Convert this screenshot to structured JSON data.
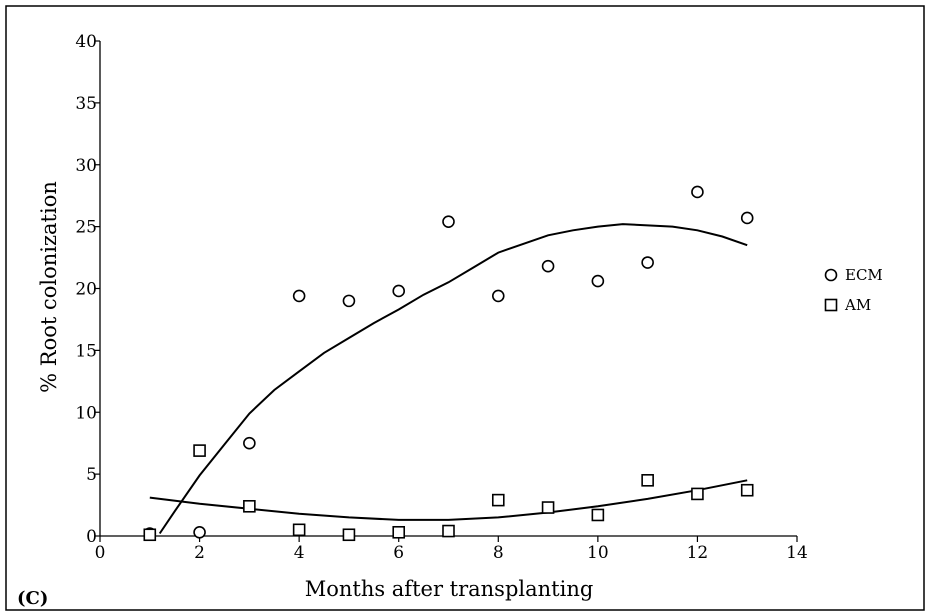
{
  "chart_data": {
    "type": "scatter",
    "panel_label": "(C)",
    "xlabel": "Months after transplanting",
    "ylabel": "% Root colonization",
    "xlim": [
      0,
      14
    ],
    "ylim": [
      0,
      40
    ],
    "xticks": [
      0,
      2,
      4,
      6,
      8,
      10,
      12,
      14
    ],
    "yticks": [
      0,
      5,
      10,
      15,
      20,
      25,
      30,
      35,
      40
    ],
    "grid": false,
    "legend_position": "right",
    "series": [
      {
        "name": "ECM",
        "marker": "circle",
        "x": [
          1,
          2,
          3,
          4,
          5,
          6,
          7,
          8,
          9,
          10,
          11,
          12,
          13
        ],
        "y": [
          0.2,
          0.3,
          7.5,
          19.4,
          19.0,
          19.8,
          25.4,
          19.4,
          21.8,
          20.6,
          22.1,
          27.8,
          25.7
        ],
        "fit": {
          "x": [
            1.2,
            1.5,
            2,
            2.5,
            3,
            3.5,
            4,
            4.5,
            5,
            5.5,
            6,
            6.5,
            7,
            7.5,
            8,
            8.5,
            9,
            9.5,
            10,
            10.5,
            11,
            11.5,
            12,
            12.5,
            13
          ],
          "y": [
            0.2,
            2.0,
            4.9,
            7.4,
            9.9,
            11.8,
            13.3,
            14.8,
            16.0,
            17.2,
            18.3,
            19.5,
            20.5,
            21.7,
            22.9,
            23.6,
            24.3,
            24.7,
            25.0,
            25.2,
            25.1,
            25.0,
            24.7,
            24.2,
            23.5
          ]
        }
      },
      {
        "name": "AM",
        "marker": "square",
        "x": [
          1,
          2,
          3,
          4,
          5,
          6,
          7,
          8,
          9,
          10,
          11,
          12,
          13
        ],
        "y": [
          0.1,
          6.9,
          2.4,
          0.5,
          0.1,
          0.3,
          0.4,
          2.9,
          2.3,
          1.7,
          4.5,
          3.4,
          3.7
        ],
        "fit": {
          "x": [
            1,
            2,
            3,
            4,
            5,
            6,
            7,
            8,
            9,
            10,
            11,
            12,
            13
          ],
          "y": [
            3.1,
            2.6,
            2.2,
            1.8,
            1.5,
            1.3,
            1.3,
            1.5,
            1.9,
            2.4,
            3.0,
            3.7,
            4.5
          ]
        }
      }
    ]
  }
}
